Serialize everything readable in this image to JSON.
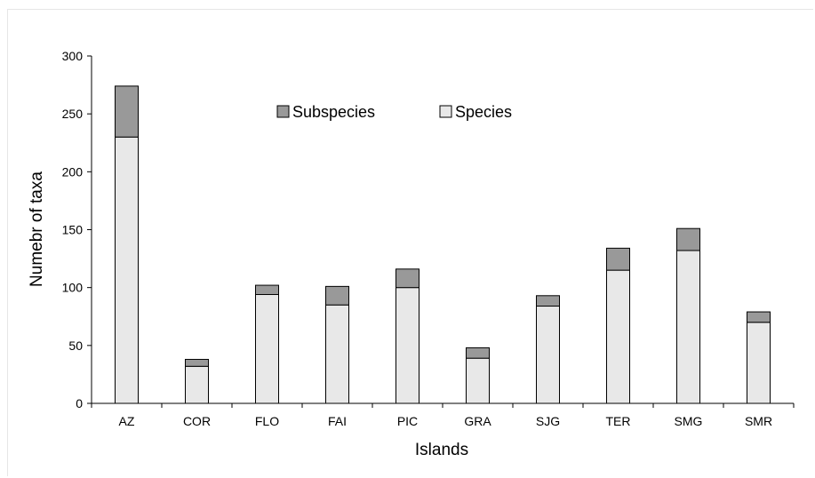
{
  "chart_data": {
    "type": "bar",
    "stacked": true,
    "categories": [
      "AZ",
      "COR",
      "FLO",
      "FAI",
      "PIC",
      "GRA",
      "SJG",
      "TER",
      "SMG",
      "SMR"
    ],
    "series": [
      {
        "name": "Species",
        "values": [
          230,
          32,
          94,
          85,
          100,
          39,
          84,
          115,
          132,
          70
        ],
        "color": "#e8e8e8"
      },
      {
        "name": "Subspecies",
        "values": [
          44,
          6,
          8,
          16,
          16,
          9,
          9,
          19,
          19,
          9
        ],
        "color": "#999999"
      }
    ],
    "legend_order": [
      "Subspecies",
      "Species"
    ],
    "title": "",
    "xlabel": "Islands",
    "ylabel": "Numebr of taxa",
    "ylim": [
      0,
      300
    ],
    "yticks": [
      0,
      50,
      100,
      150,
      200,
      250,
      300
    ],
    "grid": false,
    "legend_position": "top-center"
  }
}
